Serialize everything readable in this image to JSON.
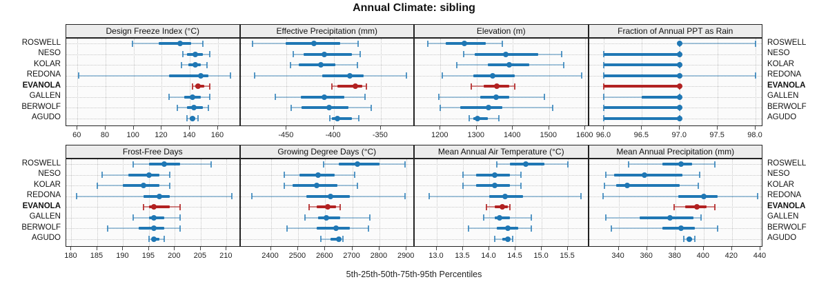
{
  "title": "Annual Climate: sibling",
  "caption": "5th-25th-50th-75th-95th Percentiles",
  "stations": [
    "ROSWELL",
    "NESO",
    "KOLAR",
    "REDONA",
    "EVANOLA",
    "GALLEN",
    "BERWOLF",
    "AGUDO"
  ],
  "highlight_station": "EVANOLA",
  "percentile_labels": [
    "5th",
    "25th",
    "50th",
    "75th",
    "95th"
  ],
  "colors": {
    "series": "#1f77b4",
    "series_light": "rgba(31,119,180,0.38)",
    "series_cap": "rgba(31,119,180,0.75)",
    "highlight": "#b22222",
    "highlight_light": "rgba(178,34,34,0.55)",
    "highlight_cap": "rgba(178,34,34,0.85)",
    "strip_bg": "#ececec",
    "panel_bg": "#fbfbfb",
    "grid": "#c6c6c6",
    "border": "#222222"
  },
  "chart_data": [
    {
      "type": "scatter",
      "mark": "dot-whisker",
      "row": 0,
      "col": 0,
      "title": "Design Freeze Index (°C)",
      "xlim": [
        52,
        176
      ],
      "ticks": [
        60,
        80,
        100,
        120,
        140,
        160
      ],
      "tick_labels": [
        "60",
        "80",
        "100",
        "120",
        "140",
        "160"
      ],
      "series": [
        {
          "name": "ROSWELL",
          "percentiles": [
            99,
            118,
            133,
            141,
            149
          ]
        },
        {
          "name": "NESO",
          "percentiles": [
            135,
            138,
            144,
            149,
            154
          ]
        },
        {
          "name": "KOLAR",
          "percentiles": [
            134,
            139,
            144,
            148,
            152
          ]
        },
        {
          "name": "REDONA",
          "percentiles": [
            61,
            125,
            148,
            153,
            169
          ]
        },
        {
          "name": "EVANOLA",
          "percentiles": [
            142,
            144,
            146,
            150,
            154
          ]
        },
        {
          "name": "GALLEN",
          "percentiles": [
            125,
            136,
            142,
            148,
            154
          ]
        },
        {
          "name": "BERWOLF",
          "percentiles": [
            131,
            138,
            143,
            149,
            153
          ]
        },
        {
          "name": "AGUDO",
          "percentiles": [
            138,
            140,
            142,
            144,
            146
          ]
        }
      ]
    },
    {
      "type": "scatter",
      "mark": "dot-whisker",
      "row": 0,
      "col": 1,
      "title": "Effective Precipitation (mm)",
      "xlim": [
        -499,
        -314
      ],
      "ticks": [
        -450,
        -400,
        -350
      ],
      "tick_labels": [
        "-450",
        "-400",
        "-350"
      ],
      "series": [
        {
          "name": "ROSWELL",
          "percentiles": [
            -486,
            -451,
            -421,
            -393,
            -374
          ]
        },
        {
          "name": "NESO",
          "percentiles": [
            -443,
            -432,
            -410,
            -381,
            -372
          ]
        },
        {
          "name": "KOLAR",
          "percentiles": [
            -446,
            -437,
            -414,
            -398,
            -375
          ]
        },
        {
          "name": "REDONA",
          "percentiles": [
            -484,
            -412,
            -383,
            -368,
            -323
          ]
        },
        {
          "name": "EVANOLA",
          "percentiles": [
            -402,
            -396,
            -377,
            -370,
            -365
          ]
        },
        {
          "name": "GALLEN",
          "percentiles": [
            -462,
            -435,
            -410,
            -389,
            -367
          ]
        },
        {
          "name": "BERWOLF",
          "percentiles": [
            -445,
            -434,
            -405,
            -384,
            -360
          ]
        },
        {
          "name": "AGUDO",
          "percentiles": [
            -404,
            -402,
            -396,
            -381,
            -373
          ]
        }
      ]
    },
    {
      "type": "scatter",
      "mark": "dot-whisker",
      "row": 0,
      "col": 2,
      "title": "Elevation (m)",
      "xlim": [
        1129,
        1610
      ],
      "ticks": [
        1200,
        1300,
        1400,
        1500,
        1600
      ],
      "tick_labels": [
        "1200",
        "1300",
        "1400",
        "1500",
        "1600"
      ],
      "series": [
        {
          "name": "ROSWELL",
          "percentiles": [
            1165,
            1215,
            1267,
            1325,
            1370
          ]
        },
        {
          "name": "NESO",
          "percentiles": [
            1265,
            1295,
            1380,
            1470,
            1535
          ]
        },
        {
          "name": "KOLAR",
          "percentiles": [
            1245,
            1330,
            1390,
            1445,
            1540
          ]
        },
        {
          "name": "REDONA",
          "percentiles": [
            1205,
            1290,
            1345,
            1405,
            1590
          ]
        },
        {
          "name": "EVANOLA",
          "percentiles": [
            1285,
            1320,
            1355,
            1390,
            1405
          ]
        },
        {
          "name": "GALLEN",
          "percentiles": [
            1195,
            1310,
            1353,
            1390,
            1487
          ]
        },
        {
          "name": "BERWOLF",
          "percentiles": [
            1200,
            1255,
            1333,
            1370,
            1510
          ]
        },
        {
          "name": "AGUDO",
          "percentiles": [
            1280,
            1290,
            1302,
            1330,
            1362
          ]
        }
      ]
    },
    {
      "type": "scatter",
      "mark": "dot-whisker",
      "row": 0,
      "col": 3,
      "title": "Fraction of Annual PPT as Rain",
      "xlim": [
        95.8,
        98.1
      ],
      "ticks": [
        96.0,
        96.5,
        97.0,
        97.5,
        98.0
      ],
      "tick_labels": [
        "96.0",
        "96.5",
        "97.0",
        "97.5",
        "98.0"
      ],
      "series": [
        {
          "name": "ROSWELL",
          "percentiles": [
            97,
            97,
            97,
            97,
            98
          ]
        },
        {
          "name": "NESO",
          "percentiles": [
            96,
            96,
            97,
            97,
            97
          ]
        },
        {
          "name": "KOLAR",
          "percentiles": [
            96,
            96,
            97,
            97,
            97
          ]
        },
        {
          "name": "REDONA",
          "percentiles": [
            96,
            96,
            97,
            97,
            98
          ]
        },
        {
          "name": "EVANOLA",
          "percentiles": [
            96,
            96,
            97,
            97,
            97
          ]
        },
        {
          "name": "GALLEN",
          "percentiles": [
            96,
            96.5,
            97,
            97,
            97
          ]
        },
        {
          "name": "BERWOLF",
          "percentiles": [
            96,
            96,
            97,
            97,
            97
          ]
        },
        {
          "name": "AGUDO",
          "percentiles": [
            96,
            96,
            97,
            97,
            97
          ]
        }
      ]
    },
    {
      "type": "scatter",
      "mark": "dot-whisker",
      "row": 1,
      "col": 0,
      "title": "Frost-Free Days",
      "xlim": [
        179,
        212.7
      ],
      "ticks": [
        180,
        185,
        190,
        195,
        200,
        205,
        210
      ],
      "tick_labels": [
        "180",
        "185",
        "190",
        "195",
        "200",
        "205",
        "210"
      ],
      "series": [
        {
          "name": "ROSWELL",
          "percentiles": [
            192,
            195,
            198,
            201,
            207
          ]
        },
        {
          "name": "NESO",
          "percentiles": [
            186,
            191,
            195,
            197,
            199
          ]
        },
        {
          "name": "KOLAR",
          "percentiles": [
            185,
            190,
            194,
            197,
            199
          ]
        },
        {
          "name": "REDONA",
          "percentiles": [
            181,
            194,
            197,
            199,
            211
          ]
        },
        {
          "name": "EVANOLA",
          "percentiles": [
            194,
            195,
            196,
            199,
            201
          ]
        },
        {
          "name": "GALLEN",
          "percentiles": [
            192,
            195,
            196,
            198,
            201
          ]
        },
        {
          "name": "BERWOLF",
          "percentiles": [
            187,
            193,
            196,
            198,
            201
          ]
        },
        {
          "name": "AGUDO",
          "percentiles": [
            195,
            195.5,
            196,
            197,
            198
          ]
        }
      ]
    },
    {
      "type": "scatter",
      "mark": "dot-whisker",
      "row": 1,
      "col": 1,
      "title": "Growing Degree Days (°C)",
      "xlim": [
        2288,
        2930
      ],
      "ticks": [
        2400,
        2500,
        2600,
        2700,
        2800,
        2900
      ],
      "tick_labels": [
        "2400",
        "2500",
        "2600",
        "2700",
        "2800",
        "2900"
      ],
      "series": [
        {
          "name": "ROSWELL",
          "percentiles": [
            2595,
            2650,
            2720,
            2800,
            2895
          ]
        },
        {
          "name": "NESO",
          "percentiles": [
            2450,
            2505,
            2575,
            2635,
            2710
          ]
        },
        {
          "name": "KOLAR",
          "percentiles": [
            2450,
            2480,
            2570,
            2645,
            2720
          ]
        },
        {
          "name": "REDONA",
          "percentiles": [
            2330,
            2530,
            2620,
            2690,
            2895
          ]
        },
        {
          "name": "EVANOLA",
          "percentiles": [
            2540,
            2570,
            2610,
            2640,
            2655
          ]
        },
        {
          "name": "GALLEN",
          "percentiles": [
            2525,
            2575,
            2605,
            2655,
            2765
          ]
        },
        {
          "name": "BERWOLF",
          "percentiles": [
            2460,
            2570,
            2640,
            2690,
            2760
          ]
        },
        {
          "name": "AGUDO",
          "percentiles": [
            2585,
            2620,
            2650,
            2655,
            2665
          ]
        }
      ]
    },
    {
      "type": "scatter",
      "mark": "dot-whisker",
      "row": 1,
      "col": 2,
      "title": "Mean Annual Air Temperature (°C)",
      "xlim": [
        12.58,
        15.9
      ],
      "ticks": [
        13.0,
        13.5,
        14.0,
        14.5,
        15.0,
        15.5
      ],
      "tick_labels": [
        "13.0",
        "13.5",
        "14.0",
        "14.5",
        "15.0",
        "15.5"
      ],
      "series": [
        {
          "name": "ROSWELL",
          "percentiles": [
            14.15,
            14.4,
            14.7,
            15.05,
            15.5
          ]
        },
        {
          "name": "NESO",
          "percentiles": [
            13.5,
            13.75,
            14.1,
            14.4,
            14.6
          ]
        },
        {
          "name": "KOLAR",
          "percentiles": [
            13.5,
            13.75,
            14.1,
            14.4,
            14.6
          ]
        },
        {
          "name": "REDONA",
          "percentiles": [
            12.85,
            14.0,
            14.3,
            14.65,
            15.75
          ]
        },
        {
          "name": "EVANOLA",
          "percentiles": [
            13.95,
            14.1,
            14.25,
            14.35,
            14.4
          ]
        },
        {
          "name": "GALLEN",
          "percentiles": [
            13.9,
            14.1,
            14.2,
            14.4,
            14.8
          ]
        },
        {
          "name": "BERWOLF",
          "percentiles": [
            13.6,
            14.15,
            14.35,
            14.55,
            14.8
          ]
        },
        {
          "name": "AGUDO",
          "percentiles": [
            14.1,
            14.25,
            14.35,
            14.4,
            14.45
          ]
        }
      ]
    },
    {
      "type": "scatter",
      "mark": "dot-whisker",
      "row": 1,
      "col": 3,
      "title": "Mean Annual Precipitation (mm)",
      "xlim": [
        319,
        442
      ],
      "ticks": [
        340,
        360,
        380,
        400,
        420,
        440
      ],
      "tick_labels": [
        "340",
        "360",
        "380",
        "400",
        "420",
        "440"
      ],
      "series": [
        {
          "name": "ROSWELL",
          "percentiles": [
            347,
            371,
            384,
            392,
            408
          ]
        },
        {
          "name": "NESO",
          "percentiles": [
            331,
            337,
            358,
            385,
            397
          ]
        },
        {
          "name": "KOLAR",
          "percentiles": [
            330,
            338,
            346,
            383,
            396
          ]
        },
        {
          "name": "REDONA",
          "percentiles": [
            329,
            382,
            400,
            410,
            438
          ]
        },
        {
          "name": "EVANOLA",
          "percentiles": [
            379,
            387,
            395,
            402,
            408
          ]
        },
        {
          "name": "GALLEN",
          "percentiles": [
            331,
            355,
            376,
            393,
            398
          ]
        },
        {
          "name": "BERWOLF",
          "percentiles": [
            335,
            371,
            384,
            394,
            410
          ]
        },
        {
          "name": "AGUDO",
          "percentiles": [
            386,
            388,
            390,
            392,
            394
          ]
        }
      ]
    }
  ]
}
